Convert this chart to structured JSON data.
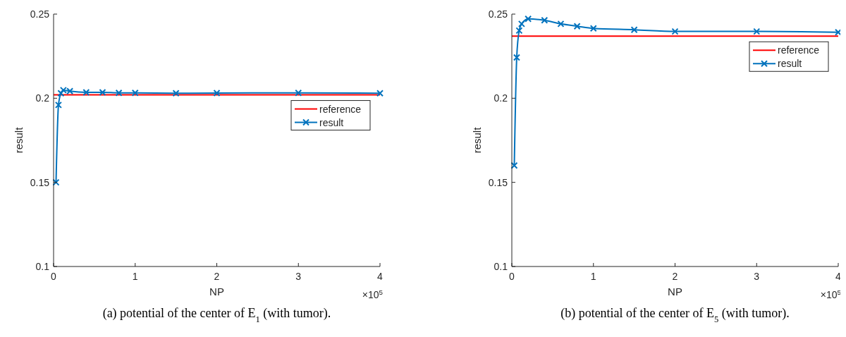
{
  "chart_data": [
    {
      "type": "line",
      "title": "(a)  potential of the center of E$_{1}$ (with tumor).",
      "xlabel": "NP",
      "ylabel": "result",
      "annotations": [
        "×10$^{5}$"
      ],
      "xlim": [
        0,
        4
      ],
      "ylim": [
        0.1,
        0.25
      ],
      "xticks": [
        0,
        1,
        2,
        3,
        4
      ],
      "yticks": [
        0.1,
        0.15,
        0.2,
        0.25
      ],
      "grid": false,
      "legend": "top right",
      "series": [
        {
          "name": "reference",
          "color": "#ff0000",
          "marker": "none",
          "x": [
            0,
            4
          ],
          "values": [
            0.202,
            0.202
          ]
        },
        {
          "name": "result",
          "color": "#0072bd",
          "marker": "cross",
          "x": [
            0.03,
            0.06,
            0.09,
            0.12,
            0.2,
            0.4,
            0.6,
            0.8,
            1,
            1.5,
            2,
            3,
            4
          ],
          "values": [
            0.15,
            0.196,
            0.203,
            0.2048,
            0.2042,
            0.2035,
            0.2035,
            0.2032,
            0.2032,
            0.203,
            0.2031,
            0.2032,
            0.203
          ]
        }
      ]
    },
    {
      "type": "line",
      "title": "(b)  potential of the center of E$_{5}$ (with tumor).",
      "xlabel": "NP",
      "ylabel": "result",
      "annotations": [
        "×10$^{5}$"
      ],
      "xlim": [
        0,
        4
      ],
      "ylim": [
        0.1,
        0.25
      ],
      "xticks": [
        0,
        1,
        2,
        3,
        4
      ],
      "yticks": [
        0.1,
        0.15,
        0.2,
        0.25
      ],
      "grid": false,
      "legend": "top right",
      "series": [
        {
          "name": "reference",
          "color": "#ff0000",
          "marker": "none",
          "x": [
            0,
            4
          ],
          "values": [
            0.2369,
            0.2369
          ]
        },
        {
          "name": "result",
          "color": "#0072bd",
          "marker": "cross",
          "x": [
            0.03,
            0.06,
            0.09,
            0.12,
            0.2,
            0.4,
            0.6,
            0.8,
            1,
            1.5,
            2,
            3,
            4
          ],
          "values": [
            0.16,
            0.2242,
            0.2402,
            0.2442,
            0.2472,
            0.2463,
            0.2442,
            0.2428,
            0.2415,
            0.2407,
            0.2397,
            0.2397,
            0.2392
          ]
        }
      ]
    }
  ]
}
